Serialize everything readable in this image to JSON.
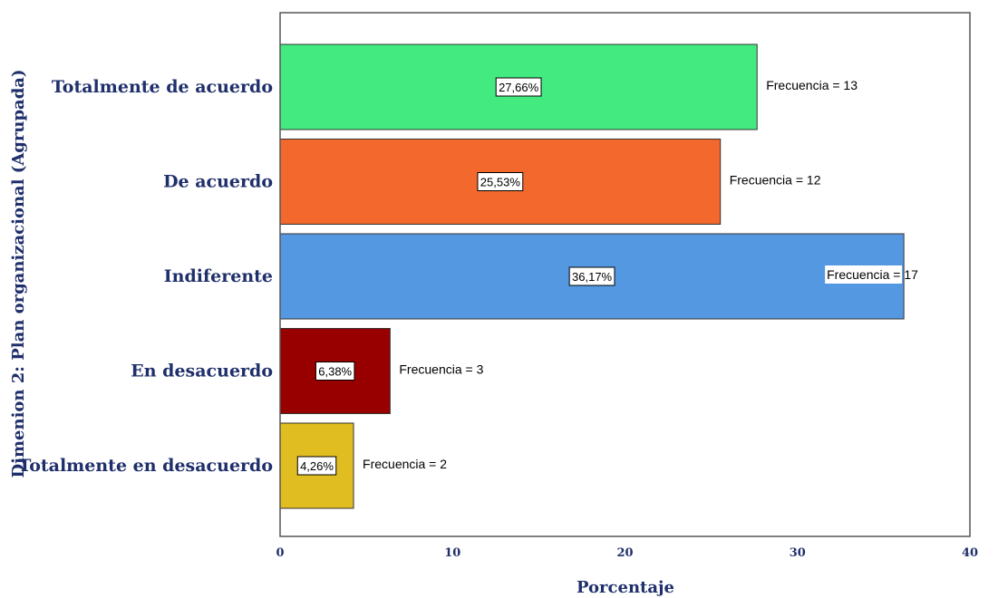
{
  "chart_data": {
    "type": "bar",
    "orientation": "horizontal",
    "xlabel": "Porcentaje",
    "ylabel": "Dimenion 2: Plan organizacional (Agrupada)",
    "xlim": [
      0,
      40
    ],
    "x_ticks": [
      "0",
      "10",
      "20",
      "30",
      "40"
    ],
    "grid": false,
    "categories": [
      "Totalmente de acuerdo",
      "De acuerdo",
      "Indiferente",
      "En desacuerdo",
      "Totalmente en desacuerdo"
    ],
    "values": [
      27.66,
      25.53,
      36.17,
      6.38,
      4.26
    ],
    "percent_labels": [
      "27,66%",
      "25,53%",
      "36,17%",
      "6,38%",
      "4,26%"
    ],
    "frequency_labels": [
      "Frecuencia = 13",
      "Frecuencia = 12",
      "Frecuencia = 17",
      "Frecuencia = 3",
      "Frecuencia = 2"
    ],
    "colors": [
      "#42ea7f",
      "#f2682d",
      "#5598e2",
      "#980000",
      "#e0bd20"
    ]
  }
}
